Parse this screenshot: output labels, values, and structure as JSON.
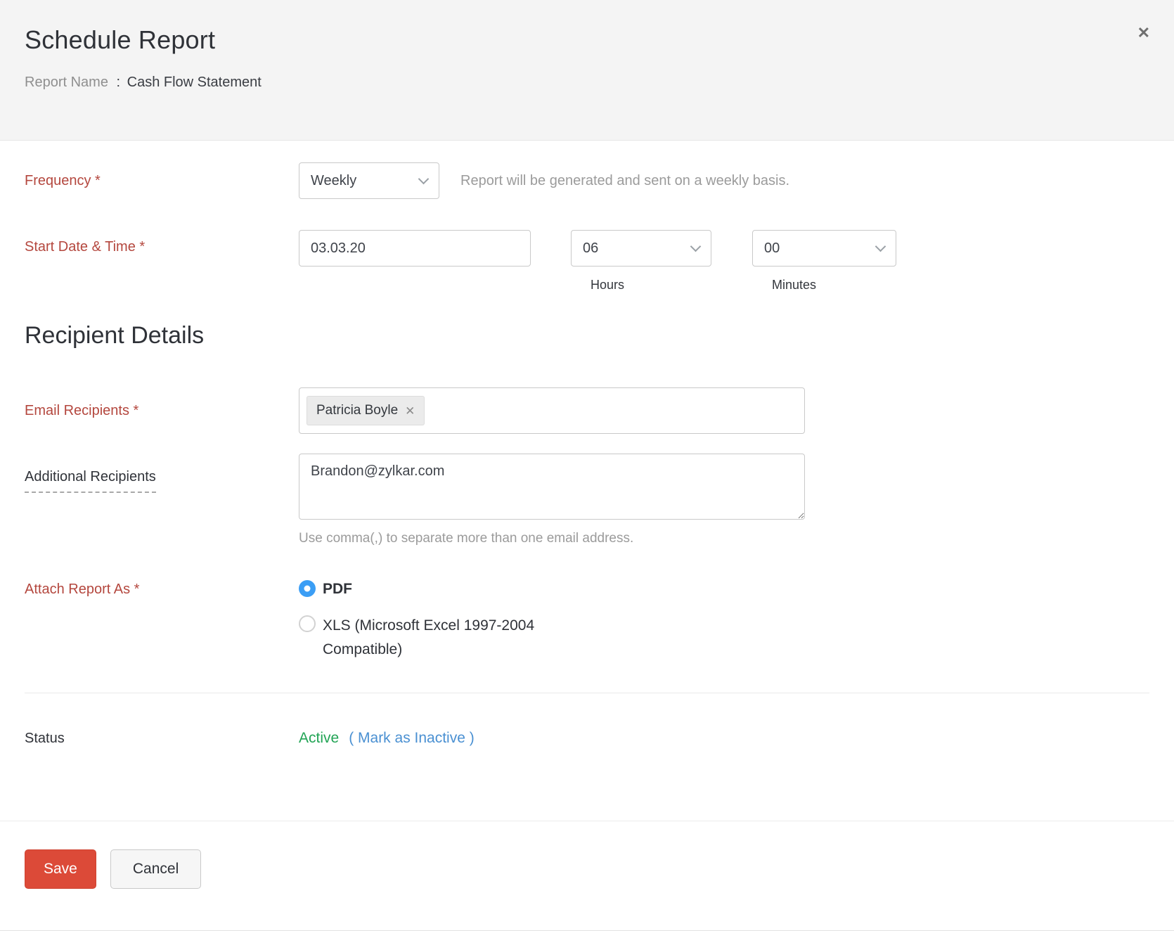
{
  "header": {
    "title": "Schedule Report",
    "report_name_label": "Report Name",
    "report_name_separator": ":",
    "report_name_value": "Cash Flow Statement",
    "close_icon": "✕"
  },
  "frequency": {
    "label": "Frequency *",
    "value": "Weekly",
    "helper": "Report will be generated and sent on a weekly basis."
  },
  "start": {
    "label": "Start Date & Time *",
    "date_value": "03.03.20",
    "hours_value": "06",
    "hours_caption": "Hours",
    "minutes_value": "00",
    "minutes_caption": "Minutes"
  },
  "recipients": {
    "section_title": "Recipient Details",
    "email_label": "Email Recipients *",
    "chip_label": "Patricia Boyle",
    "chip_remove_icon": "✕",
    "additional_label": "Additional Recipients",
    "additional_value": "Brandon@zylkar.com",
    "additional_helper": "Use comma(,) to separate more than one email address."
  },
  "attach": {
    "label": "Attach Report As *",
    "options": [
      {
        "label": "PDF",
        "selected": true
      },
      {
        "label": "XLS (Microsoft Excel 1997-2004 Compatible)",
        "selected": false
      }
    ]
  },
  "status": {
    "label": "Status",
    "value": "Active",
    "action": "( Mark as Inactive )"
  },
  "footer": {
    "save_label": "Save",
    "cancel_label": "Cancel"
  },
  "colors": {
    "required_label_red": "#b4473e",
    "save_button_red": "#dc4a38",
    "radio_blue": "#3b9ef5",
    "active_green": "#22a455",
    "link_blue": "#4a90d2",
    "header_bg": "#f4f4f4"
  }
}
